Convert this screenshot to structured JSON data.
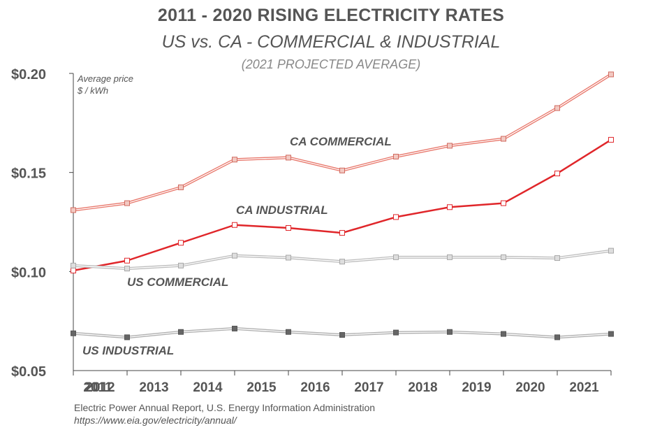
{
  "title": "2011 - 2020 RISING ELECTRICITY RATES",
  "subtitle": "US vs. CA - COMMERCIAL & INDUSTRIAL",
  "note": "(2021 PROJECTED AVERAGE)",
  "source": {
    "line1": "Electric Power Annual Report, U.S. Energy Information Administration",
    "line2": "https://www.eia.gov/electricity/annual/"
  },
  "chart_data": {
    "type": "line",
    "title": "2011 - 2020 RISING ELECTRICITY RATES",
    "subtitle": "US vs. CA - COMMERCIAL & INDUSTRIAL",
    "ylabel_lines": [
      "Average price",
      "$ / kWh"
    ],
    "x": [
      "2011",
      "2012",
      "2013",
      "2014",
      "2015",
      "2016",
      "2017",
      "2018",
      "2019",
      "2020",
      "2021"
    ],
    "ylim": [
      0.05,
      0.2
    ],
    "yticks": [
      0.05,
      0.1,
      0.15,
      0.2
    ],
    "ytick_labels": [
      "$0.05",
      "$0.10",
      "$0.15",
      "$0.20"
    ],
    "grid": false,
    "series": [
      {
        "name": "CA COMMERCIAL",
        "style": "double",
        "color": "#e8786c",
        "marker_fill": "#f2c9c2",
        "marker_stroke": "#d06a5f",
        "values": [
          0.131,
          0.1345,
          0.1425,
          0.1565,
          0.1575,
          0.151,
          0.158,
          0.1635,
          0.167,
          0.1825,
          0.1995
        ]
      },
      {
        "name": "CA INDUSTRIAL",
        "style": "solid",
        "color": "#e0262a",
        "marker_fill": "#ffffff",
        "marker_stroke": "#e0262a",
        "values": [
          0.1005,
          0.1055,
          0.1145,
          0.1235,
          0.122,
          0.1195,
          0.1275,
          0.1325,
          0.1345,
          0.1495,
          0.1665
        ]
      },
      {
        "name": "US COMMERCIAL",
        "style": "double",
        "color": "#bdbdbd",
        "marker_fill": "#dedede",
        "marker_stroke": "#a8a8a8",
        "values": [
          0.103,
          0.1015,
          0.103,
          0.108,
          0.107,
          0.105,
          0.1072,
          0.1072,
          0.1072,
          0.1068,
          0.1105
        ]
      },
      {
        "name": "US INDUSTRIAL",
        "style": "double",
        "color": "#b0b0b0",
        "marker_fill": "#666666",
        "marker_stroke": "#555555",
        "values": [
          0.0688,
          0.0668,
          0.0695,
          0.0712,
          0.0695,
          0.068,
          0.0692,
          0.0695,
          0.0685,
          0.0668,
          0.0685
        ]
      }
    ],
    "annotations": [
      "CA COMMERCIAL",
      "CA INDUSTRIAL",
      "US COMMERCIAL",
      "US INDUSTRIAL"
    ]
  }
}
